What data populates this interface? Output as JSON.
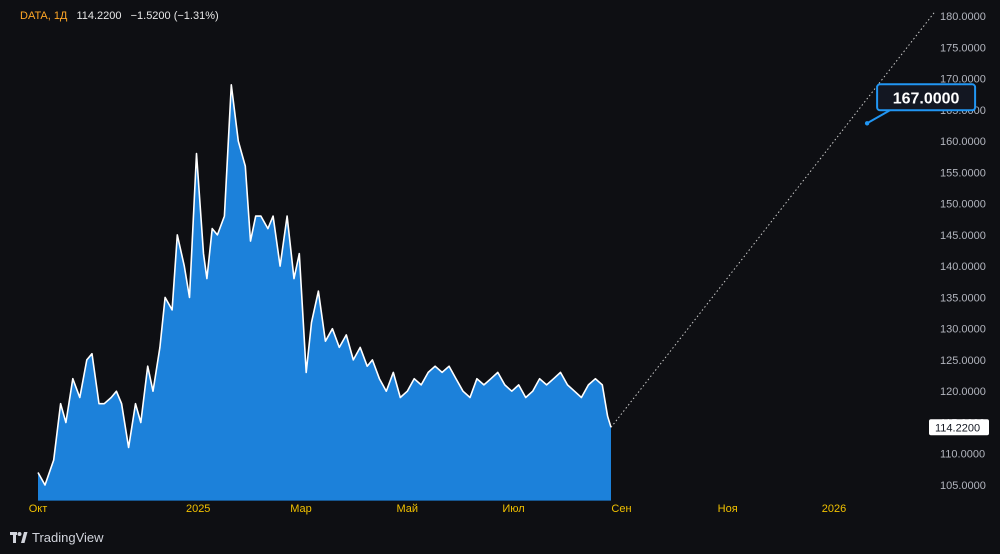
{
  "header": {
    "symbol": "DATA, 1Д",
    "last": "114.2200",
    "change": "−1.5200 (−1.31%)"
  },
  "brand": {
    "name": "TradingView",
    "icon": "tradingview-logo-icon"
  },
  "colors": {
    "background": "#0e0f13",
    "area_fill": "#1e88e5",
    "line": "#ffffff",
    "projection": "#c8c8c8",
    "callout_border": "#2196f3",
    "price_label_bg": "#ffffff",
    "axis_text": "#b2b5be",
    "time_text": "#f0c000"
  },
  "chart_data": {
    "type": "area",
    "title": "",
    "xlabel": "",
    "ylabel": "",
    "ylim": [
      102.5,
      181.5
    ],
    "xlim": [
      "2024-10-01",
      "2026-02-28"
    ],
    "grid": false,
    "y_ticks": [
      "180.0000",
      "175.0000",
      "170.0000",
      "165.0000",
      "160.0000",
      "155.0000",
      "150.0000",
      "145.0000",
      "140.0000",
      "135.0000",
      "130.0000",
      "125.0000",
      "120.0000",
      "115.0000",
      "110.0000",
      "105.0000"
    ],
    "x_ticks": [
      {
        "date": "2024-10-01",
        "label": "Окт"
      },
      {
        "date": "2025-01-01",
        "label": "2025"
      },
      {
        "date": "2025-03-01",
        "label": "Мар"
      },
      {
        "date": "2025-05-01",
        "label": "Май"
      },
      {
        "date": "2025-07-01",
        "label": "Июл"
      },
      {
        "date": "2025-09-01",
        "label": "Сен"
      },
      {
        "date": "2025-11-01",
        "label": "Ноя"
      },
      {
        "date": "2026-01-01",
        "label": "2026"
      }
    ],
    "series": [
      {
        "x": [
          "2024-10-01",
          "2024-10-05",
          "2024-10-10",
          "2024-10-14",
          "2024-10-17",
          "2024-10-21",
          "2024-10-25",
          "2024-10-29",
          "2024-11-01",
          "2024-11-05",
          "2024-11-08",
          "2024-11-12",
          "2024-11-15",
          "2024-11-18",
          "2024-11-22",
          "2024-11-26",
          "2024-11-29",
          "2024-12-03",
          "2024-12-06",
          "2024-12-10",
          "2024-12-13",
          "2024-12-17",
          "2024-12-20",
          "2024-12-24",
          "2024-12-27",
          "2024-12-31",
          "2025-01-04",
          "2025-01-06",
          "2025-01-09",
          "2025-01-12",
          "2025-01-16",
          "2025-01-20",
          "2025-01-24",
          "2025-01-28",
          "2025-01-31",
          "2025-02-03",
          "2025-02-06",
          "2025-02-10",
          "2025-02-13",
          "2025-02-17",
          "2025-02-21",
          "2025-02-25",
          "2025-02-28",
          "2025-03-04",
          "2025-03-07",
          "2025-03-11",
          "2025-03-15",
          "2025-03-19",
          "2025-03-23",
          "2025-03-27",
          "2025-03-31",
          "2025-04-04",
          "2025-04-08",
          "2025-04-11",
          "2025-04-15",
          "2025-04-19",
          "2025-04-23",
          "2025-04-27",
          "2025-05-01",
          "2025-05-05",
          "2025-05-09",
          "2025-05-13",
          "2025-05-17",
          "2025-05-21",
          "2025-05-25",
          "2025-05-29",
          "2025-06-02",
          "2025-06-06",
          "2025-06-10",
          "2025-06-14",
          "2025-06-18",
          "2025-06-22",
          "2025-06-26",
          "2025-06-30",
          "2025-07-04",
          "2025-07-08",
          "2025-07-12",
          "2025-07-16",
          "2025-07-20",
          "2025-07-24",
          "2025-07-28",
          "2025-08-01",
          "2025-08-05",
          "2025-08-09",
          "2025-08-13",
          "2025-08-17",
          "2025-08-21",
          "2025-08-24",
          "2025-08-26"
        ],
        "values": [
          107,
          105,
          109,
          118,
          115,
          122,
          119,
          125,
          126,
          118,
          118,
          119,
          120,
          118,
          111,
          118,
          115,
          124,
          120,
          127,
          135,
          133,
          145,
          140,
          135,
          158,
          142,
          138,
          146,
          145,
          148,
          169,
          160,
          156,
          144,
          148,
          148,
          146,
          148,
          140,
          148,
          138,
          142,
          123,
          131,
          136,
          128,
          130,
          127,
          129,
          125,
          127,
          124,
          125,
          122,
          120,
          123,
          119,
          120,
          122,
          121,
          123,
          124,
          123,
          124,
          122,
          120,
          119,
          122,
          121,
          122,
          123,
          121,
          120,
          121,
          119,
          120,
          122,
          121,
          122,
          123,
          121,
          120,
          119,
          121,
          122,
          121,
          116,
          114.22
        ]
      }
    ],
    "projection": {
      "from": {
        "x": "2025-08-26",
        "y": 114.22
      },
      "to": {
        "x": "2026-02-28",
        "y": 180.7
      }
    },
    "last_price_label": "114.2200",
    "callout": {
      "x": "2026-01-20",
      "y": 167.0,
      "label": "167.0000"
    }
  }
}
